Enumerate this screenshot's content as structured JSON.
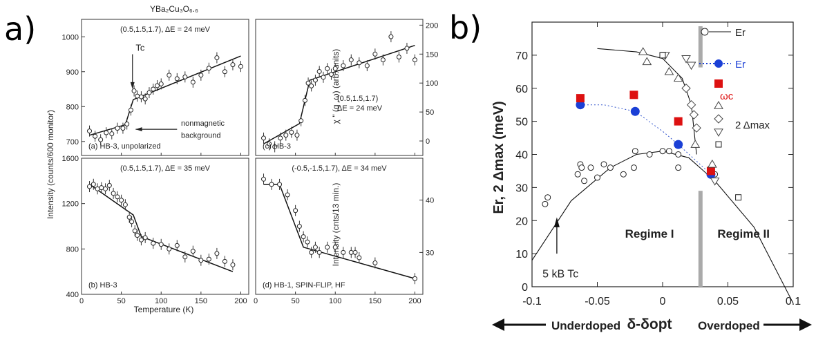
{
  "panel_labels": {
    "a": "a)",
    "b": "b)"
  },
  "figure_a": {
    "title": "YBa₂Cu₃O₆.₆",
    "xlabel": "Temperature (K)",
    "ylabel_left_top": "Intensity (counts/600 monitor)",
    "ylabel_right_top": "χ \" (q ,ω) (arb. units)",
    "ylabel_right_bottom": "Intensity (cnts/13 min.)"
  },
  "chart_data": [
    {
      "id": "a",
      "type": "scatter",
      "title": "(0.5,1.5,1.7), ΔE = 24 meV",
      "panel_caption": "(a) HB-3, unpolarized",
      "annotations": [
        "Tc",
        "nonmagnetic background"
      ],
      "xlim": [
        0,
        210
      ],
      "ylim": [
        660,
        1050
      ],
      "yticks": [
        700,
        800,
        900,
        1000
      ],
      "x": [
        10,
        17,
        24,
        31,
        38,
        45,
        52,
        57,
        62,
        66,
        70,
        75,
        80,
        85,
        90,
        95,
        100,
        110,
        120,
        130,
        140,
        150,
        160,
        170,
        180,
        190,
        200
      ],
      "y": [
        730,
        715,
        705,
        725,
        722,
        738,
        738,
        750,
        790,
        845,
        830,
        828,
        822,
        840,
        850,
        860,
        865,
        890,
        880,
        885,
        870,
        890,
        910,
        940,
        900,
        920,
        915
      ],
      "fit": {
        "x": [
          10,
          55,
          65,
          200
        ],
        "y": [
          718,
          748,
          820,
          945
        ]
      }
    },
    {
      "id": "c",
      "type": "scatter",
      "title": "(0.5,1.5,1.7)\nΔE = 24 meV",
      "panel_caption": "(c) HB-3",
      "xlim": [
        0,
        210
      ],
      "ylim": [
        -25,
        210
      ],
      "yticks": [
        0,
        50,
        100,
        150,
        200
      ],
      "x": [
        10,
        17,
        24,
        31,
        38,
        45,
        52,
        57,
        62,
        66,
        70,
        75,
        80,
        85,
        90,
        95,
        100,
        110,
        120,
        130,
        140,
        150,
        160,
        170,
        180,
        190,
        200
      ],
      "y": [
        5,
        -5,
        -10,
        5,
        10,
        15,
        10,
        35,
        70,
        100,
        95,
        105,
        120,
        110,
        125,
        115,
        125,
        130,
        140,
        135,
        130,
        150,
        140,
        180,
        145,
        160,
        140
      ],
      "fit": {
        "x": [
          10,
          55,
          68,
          200
        ],
        "y": [
          -5,
          30,
          105,
          165
        ]
      }
    },
    {
      "id": "b",
      "type": "scatter",
      "title": "(0.5,1.5,1.7), ΔE = 35 meV",
      "panel_caption": "(b) HB-3",
      "xlabel": "Temperature (K)",
      "xlim": [
        0,
        210
      ],
      "ylim": [
        400,
        1600
      ],
      "xticks": [
        0,
        50,
        100,
        150,
        200
      ],
      "yticks": [
        400,
        800,
        1200,
        1600
      ],
      "x": [
        10,
        15,
        20,
        25,
        30,
        35,
        40,
        45,
        50,
        55,
        60,
        63,
        67,
        70,
        75,
        80,
        90,
        100,
        110,
        120,
        130,
        140,
        150,
        160,
        170,
        180,
        190
      ],
      "y": [
        1350,
        1370,
        1330,
        1340,
        1330,
        1360,
        1290,
        1260,
        1230,
        1190,
        1080,
        1040,
        960,
        920,
        880,
        900,
        850,
        840,
        800,
        830,
        730,
        780,
        700,
        710,
        760,
        690,
        660
      ],
      "fit": {
        "x": [
          10,
          65,
          75,
          190
        ],
        "y": [
          1370,
          1100,
          910,
          600
        ]
      }
    },
    {
      "id": "d",
      "type": "scatter",
      "title": "(-0.5,-1.5,1.7), ΔE = 34 meV",
      "panel_caption": "(d) HB-1, SPIN-FLIP, HF",
      "xlim": [
        0,
        210
      ],
      "ylim": [
        22,
        48
      ],
      "xticks": [
        0,
        50,
        100,
        150,
        200
      ],
      "yticks": [
        30,
        40
      ],
      "x": [
        10,
        20,
        30,
        40,
        50,
        55,
        60,
        65,
        70,
        75,
        80,
        90,
        100,
        110,
        120,
        125,
        130,
        150,
        200
      ],
      "y": [
        44,
        43,
        43,
        41,
        38,
        35,
        33,
        32,
        30,
        31,
        30,
        31,
        31,
        30,
        30,
        30,
        29,
        28,
        25
      ],
      "fit": {
        "x": [
          10,
          30,
          60,
          200
        ],
        "y": [
          43,
          43,
          31,
          25
        ]
      }
    },
    {
      "id": "b_right",
      "type": "scatter",
      "xlabel": "δ-δopt",
      "ylabel": "Er, 2 Δmax (meV)",
      "xlim": [
        -0.1,
        0.1
      ],
      "ylim": [
        0,
        80
      ],
      "xticks": [
        -0.1,
        -0.05,
        0,
        0.05,
        0.1
      ],
      "xtick_labels": [
        "-0.1",
        "-0.05",
        "0",
        "0.05",
        "0.1"
      ],
      "yticks": [
        0,
        10,
        20,
        30,
        40,
        50,
        60,
        70
      ],
      "legend": [
        "Er",
        "Er",
        "ωc",
        "2 Δmax"
      ],
      "legend_position": "top-right",
      "text": {
        "regime1": "Regime I",
        "regime2": "Regime II",
        "kbtc": "5 kB Tc",
        "under": "Underdoped",
        "over": "Overdoped"
      },
      "series": [
        {
          "name": "Er",
          "marker": "open-circle",
          "x": [
            -0.065,
            -0.06,
            -0.055,
            -0.05,
            -0.045,
            -0.04,
            -0.03,
            -0.022,
            -0.01,
            0.0,
            0.005,
            0.012,
            0.04,
            -0.09,
            -0.088,
            -0.063,
            -0.062,
            -0.021,
            0.012
          ],
          "y": [
            34,
            32,
            36,
            33,
            37,
            36,
            34,
            36,
            40,
            41,
            41,
            40,
            34,
            25,
            27,
            37,
            36,
            41,
            36
          ]
        },
        {
          "name": "Er",
          "marker": "filled-circle",
          "x": [
            -0.063,
            -0.021,
            0.012,
            0.037
          ],
          "y": [
            55,
            53,
            43,
            34
          ]
        },
        {
          "name": "ωc",
          "marker": "filled-square",
          "x": [
            -0.063,
            -0.022,
            0.012,
            0.037
          ],
          "y": [
            57,
            58,
            50,
            35
          ]
        },
        {
          "name": "2 Δmax",
          "marker": "open-triangle",
          "x": [
            -0.015,
            -0.012,
            0.005,
            0.012,
            0.025,
            0.038
          ],
          "y": [
            71,
            68,
            65,
            63,
            43,
            37
          ]
        },
        {
          "name": "2 Δmax",
          "marker": "open-diamond",
          "x": [
            0.018,
            0.022,
            0.024,
            0.026
          ],
          "y": [
            60,
            55,
            52,
            48
          ]
        },
        {
          "name": "2 Δmax",
          "marker": "open-down-triangle",
          "x": [
            0.002,
            0.018,
            0.022,
            0.04
          ],
          "y": [
            70,
            69,
            67,
            32
          ]
        },
        {
          "name": "2 Δmax",
          "marker": "open-square",
          "x": [
            0.0,
            0.058
          ],
          "y": [
            70,
            27
          ]
        }
      ],
      "curves": {
        "dome": {
          "x": [
            -0.1,
            -0.07,
            -0.04,
            -0.02,
            0.0,
            0.02,
            0.04,
            0.07,
            0.1
          ],
          "y": [
            8,
            26,
            36,
            40,
            41,
            39,
            32,
            18,
            -5
          ]
        },
        "gap": {
          "x": [
            -0.05,
            -0.02,
            0.0,
            0.015,
            0.022,
            0.026
          ],
          "y": [
            72,
            71,
            69,
            63,
            55,
            40
          ]
        },
        "dotted": {
          "x": [
            -0.063,
            -0.045,
            -0.021,
            0.0,
            0.012,
            0.037
          ],
          "y": [
            55,
            55,
            53,
            47,
            43,
            34
          ]
        }
      }
    }
  ]
}
